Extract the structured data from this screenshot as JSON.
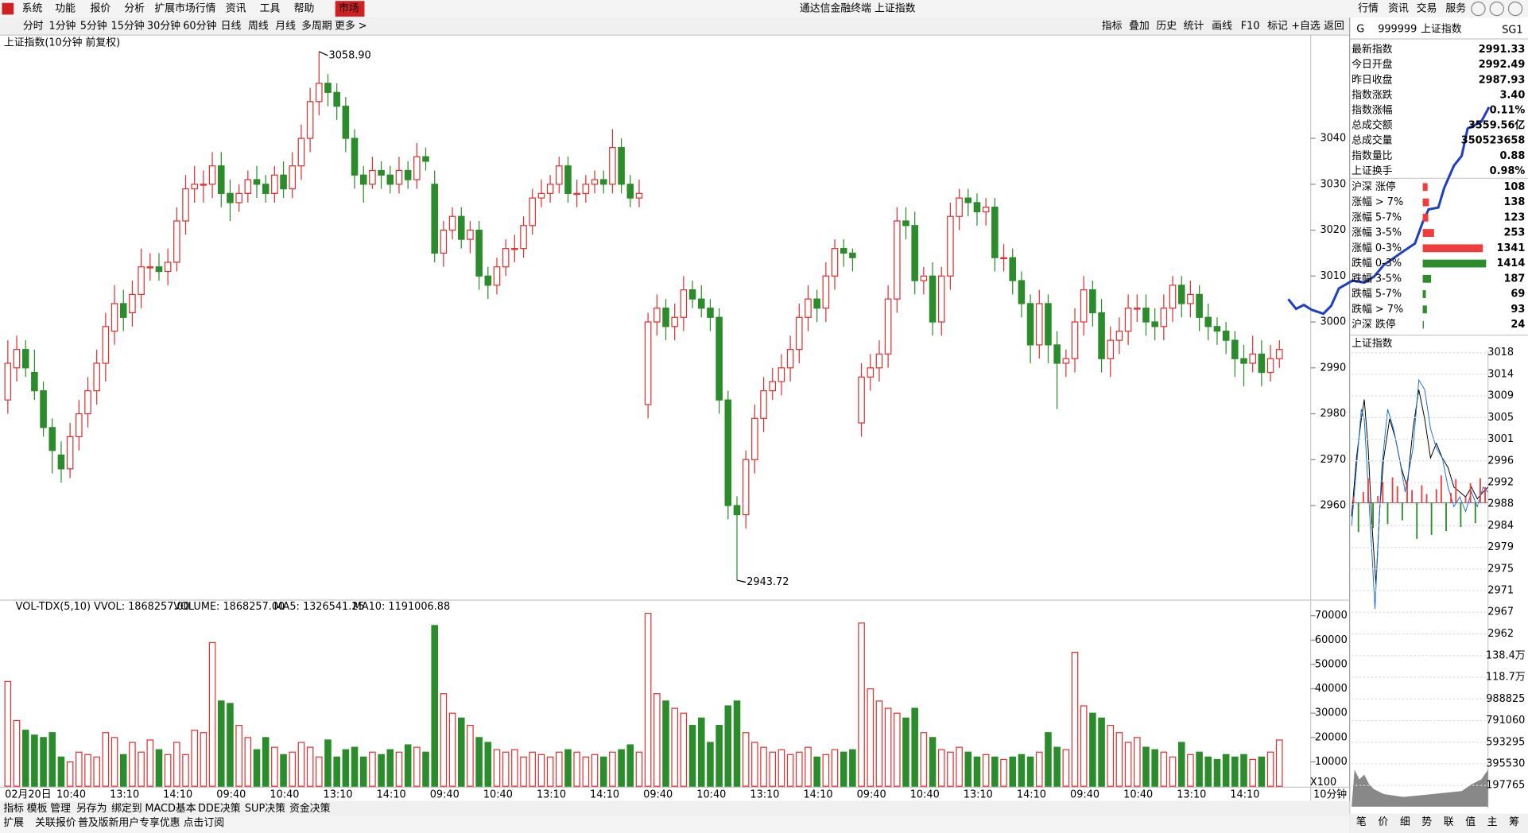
{
  "menu": [
    "系统",
    "功能",
    "报价",
    "分析",
    "扩展市场行情",
    "资讯",
    "工具",
    "帮助",
    "市场"
  ],
  "window_title": "通达信金融终端 上证指数",
  "top_buttons": [
    "行情",
    "资讯",
    "交易",
    "服务"
  ],
  "periods": [
    "分时",
    "1分钟",
    "5分钟",
    "15分钟",
    "30分钟",
    "60分钟",
    "日线",
    "周线",
    "月线",
    "多周期",
    "更多 >"
  ],
  "tools": [
    "指标",
    "叠加",
    "历史",
    "统计",
    "画线",
    "F10",
    "标记",
    "+自选",
    "返回"
  ],
  "quote_header": {
    "mark": "G",
    "code": "999999",
    "name": "上证指数",
    "tag": "SG1"
  },
  "quote": [
    {
      "label": "最新指数",
      "value": "2991.33",
      "color": "#e02020"
    },
    {
      "label": "今日开盘",
      "value": "2992.49",
      "color": "#e02020"
    },
    {
      "label": "昨日收盘",
      "value": "2987.93",
      "color": "#000000"
    },
    {
      "label": "指数涨跌",
      "value": "3.40",
      "color": "#e02020"
    },
    {
      "label": "指数涨幅",
      "value": "0.11%",
      "color": "#e02020"
    },
    {
      "label": "总成交额",
      "value": "3559.56亿",
      "color": "#000000"
    },
    {
      "label": "总成交量",
      "value": "350523658",
      "color": "#000000"
    },
    {
      "label": "指数量比",
      "value": "0.88",
      "color": "#108010"
    },
    {
      "label": "上证换手",
      "value": "0.98%",
      "color": "#000000"
    }
  ],
  "breadth": [
    {
      "label": "沪深 涨停",
      "value": 108,
      "color": "#f03c3c"
    },
    {
      "label": "涨幅 > 7%",
      "value": 138,
      "color": "#f03c3c"
    },
    {
      "label": "涨幅 5-7%",
      "value": 123,
      "color": "#f03c3c"
    },
    {
      "label": "涨幅 3-5%",
      "value": 253,
      "color": "#f03c3c"
    },
    {
      "label": "涨幅 0-3%",
      "value": 1341,
      "color": "#f03c3c"
    },
    {
      "label": "跌幅 0-3%",
      "value": 1414,
      "color": "#2a8c2a"
    },
    {
      "label": "跌幅 3-5%",
      "value": 187,
      "color": "#2a8c2a"
    },
    {
      "label": "跌幅 5-7%",
      "value": 69,
      "color": "#2a8c2a"
    },
    {
      "label": "跌幅 > 7%",
      "value": 93,
      "color": "#2a8c2a"
    },
    {
      "label": "沪深 跌停",
      "value": 24,
      "color": "#2a8c2a"
    }
  ],
  "chart_data": [
    {
      "type": "candlestick",
      "title": "上证指数(10分钟 前复权)",
      "up_color": "#e03030",
      "down_color": "#2a8c2a",
      "open": [
        2983,
        2990,
        2994,
        2989,
        2985,
        2977,
        2971,
        2968,
        2975,
        2980,
        2985,
        2991,
        2998,
        3004,
        3002,
        3006,
        3012,
        3012,
        3011,
        3013,
        3022,
        3029,
        3030,
        3030,
        3034,
        3028,
        3026,
        3028,
        3031,
        3030,
        3028,
        3032,
        3029,
        3034,
        3040,
        3048,
        3052,
        3050,
        3047,
        3040,
        3032,
        3030,
        3033,
        3032,
        3030,
        3033,
        3031,
        3036,
        3030,
        3015,
        3020,
        3023,
        3018,
        3020,
        3010,
        3008,
        3012,
        3016,
        3016,
        3021,
        3027,
        3028,
        3030,
        3034,
        3028,
        3028,
        3030,
        3031,
        3030,
        3038,
        3030,
        3027,
        2982,
        3000,
        3003,
        2999,
        3001,
        3007,
        3005,
        3003,
        3001,
        2983,
        2960,
        2958,
        2970,
        2979,
        2985,
        2987,
        2990,
        2994,
        3001,
        3005,
        3003,
        3010,
        3016,
        3015,
        2978,
        2988,
        2990,
        2993,
        3005,
        3022,
        3021,
        3009,
        3010,
        3000,
        3010,
        3023,
        3027,
        3026,
        3024,
        3025,
        3014,
        3014,
        3009,
        3004,
        2995,
        3004,
        2995,
        2991,
        2992,
        3000,
        3007,
        3002,
        2992,
        2996,
        2998,
        3003,
        3003,
        3000,
        2999,
        3003,
        3008,
        3004,
        3006,
        3001,
        2999,
        2998,
        2996,
        2992,
        2991,
        2993,
        2989,
        2992
      ],
      "high": [
        2996,
        2997,
        2996,
        2994,
        2987,
        2979,
        2974,
        2978,
        2983,
        2988,
        2994,
        3002,
        3008,
        3007,
        3009,
        3016,
        3015,
        3015,
        3016,
        3025,
        3032,
        3034,
        3033,
        3037,
        3037,
        3031,
        3030,
        3033,
        3034,
        3032,
        3034,
        3035,
        3037,
        3043,
        3051,
        3058.9,
        3054,
        3052,
        3049,
        3042,
        3034,
        3036,
        3035,
        3034,
        3036,
        3035,
        3039,
        3038,
        3033,
        3022,
        3025,
        3025,
        3022,
        3022,
        3012,
        3014,
        3018,
        3019,
        3023,
        3029,
        3031,
        3032,
        3036,
        3036,
        3031,
        3032,
        3033,
        3033,
        3042,
        3040,
        3032,
        3031,
        3002,
        3006,
        3005,
        3004,
        3010,
        3009,
        3008,
        3005,
        3003,
        2985,
        2962,
        2972,
        2982,
        2988,
        2990,
        2993,
        2997,
        3004,
        3008,
        3007,
        3013,
        3018,
        3018,
        3016,
        2991,
        2993,
        2996,
        3008,
        3025,
        3025,
        3024,
        3012,
        3013,
        3012,
        3026,
        3029,
        3029,
        3028,
        3027,
        3027,
        3017,
        3016,
        3011,
        3006,
        3007,
        3006,
        2998,
        2994,
        3003,
        3010,
        3009,
        3005,
        2999,
        3001,
        3006,
        3006,
        3006,
        3003,
        3006,
        3010,
        3010,
        3009,
        3008,
        3004,
        3001,
        3000,
        2998,
        2995,
        2997,
        2996,
        2995,
        2996
      ],
      "low": [
        2980,
        2987,
        2988,
        2983,
        2975,
        2967,
        2965,
        2966,
        2972,
        2977,
        2982,
        2987,
        2995,
        2998,
        2999,
        3003,
        3009,
        3009,
        3008,
        3011,
        3019,
        3026,
        3026,
        3027,
        3025,
        3022,
        3024,
        3026,
        3027,
        3026,
        3026,
        3027,
        3027,
        3031,
        3037,
        3045,
        3047,
        3044,
        3037,
        3029,
        3026,
        3029,
        3029,
        3028,
        3028,
        3029,
        3029,
        3033,
        3013,
        3012,
        3018,
        3016,
        3015,
        3007,
        3005,
        3006,
        3010,
        3013,
        3014,
        3019,
        3025,
        3026,
        3028,
        3026,
        3025,
        3026,
        3028,
        3028,
        3028,
        3028,
        3025,
        3025,
        2979,
        2997,
        2996,
        2996,
        2998,
        3003,
        3001,
        2998,
        2980,
        2957,
        2943.72,
        2955,
        2967,
        2976,
        2983,
        2984,
        2987,
        2991,
        2998,
        3000,
        3000,
        3007,
        3012,
        3011,
        2975,
        2985,
        2987,
        2990,
        3002,
        3018,
        3006,
        3006,
        2997,
        2997,
        3007,
        3020,
        3023,
        3021,
        3021,
        3011,
        3011,
        3006,
        3001,
        2991,
        2992,
        2991,
        2981,
        2988,
        2989,
        2997,
        2999,
        2989,
        2988,
        2993,
        2995,
        3000,
        2997,
        2996,
        2996,
        3000,
        3001,
        3001,
        2998,
        2996,
        2995,
        2993,
        2988,
        2986,
        2989,
        2986,
        2987,
        2990
      ],
      "close": [
        2991,
        2994,
        2990,
        2985,
        2977,
        2972,
        2968,
        2975,
        2980,
        2985,
        2991,
        2999,
        3004,
        3001,
        3006,
        3012,
        3012,
        3011,
        3013,
        3022,
        3029,
        3030,
        3030,
        3034,
        3028,
        3026,
        3028,
        3031,
        3030,
        3028,
        3032,
        3029,
        3034,
        3040,
        3048,
        3052,
        3050,
        3047,
        3040,
        3032,
        3030,
        3033,
        3032,
        3030,
        3033,
        3031,
        3036,
        3035,
        3015,
        3020,
        3023,
        3018,
        3020,
        3010,
        3008,
        3012,
        3016,
        3016,
        3021,
        3027,
        3028,
        3030,
        3034,
        3028,
        3028,
        3030,
        3031,
        3030,
        3038,
        3030,
        3027,
        3028,
        3000,
        3003,
        2999,
        3001,
        3007,
        3005,
        3003,
        3001,
        2983,
        2960,
        2958,
        2970,
        2979,
        2985,
        2987,
        2990,
        2994,
        3001,
        3005,
        3003,
        3010,
        3016,
        3015,
        3014,
        2988,
        2990,
        2993,
        3005,
        3022,
        3021,
        3009,
        3010,
        3000,
        3010,
        3023,
        3027,
        3026,
        3024,
        3025,
        3014,
        3014,
        3009,
        3004,
        2995,
        3004,
        2995,
        2991,
        2992,
        3000,
        3007,
        3002,
        2992,
        2996,
        2998,
        3003,
        3003,
        3000,
        2999,
        3003,
        3008,
        3004,
        3006,
        3001,
        2999,
        2998,
        2996,
        2992,
        2991,
        2993,
        2989,
        2992,
        2994
      ],
      "max_label": "3058.90",
      "min_label": "2943.72",
      "ylim": [
        2939.6,
        3062.5
      ],
      "yticks": [
        2960,
        2970,
        2980,
        2990,
        3000,
        3010,
        3020,
        3030,
        3040
      ],
      "xtick_labels": [
        "02月20日",
        "10:40",
        "13:10",
        "14:10",
        "09:40",
        "10:40",
        "13:10",
        "14:10",
        "09:40",
        "10:40",
        "13:10",
        "14:10",
        "09:40",
        "10:40",
        "13:10",
        "14:10",
        "09:40",
        "10:40",
        "13:10",
        "14:10",
        "09:40",
        "10:40",
        "13:10",
        "14:10"
      ],
      "period_label": "10分钟"
    },
    {
      "type": "bar",
      "title": "VOL-TDX(5,10)  VVOL: 1868257.00",
      "legend": [
        {
          "text": "VOLUME: 1868257.00",
          "color": "#1a6fd0"
        },
        {
          "text": "MA5: 1326541.25",
          "color": "#1a6fd0"
        },
        {
          "text": "MA10: 1191006.88",
          "color": "#9a1a9a"
        }
      ],
      "unit_label": "X100",
      "values": [
        43000,
        27000,
        23000,
        21000,
        20000,
        22000,
        12000,
        10000,
        14000,
        13000,
        12000,
        22000,
        20000,
        13000,
        18000,
        14000,
        19000,
        15000,
        13000,
        18000,
        13000,
        23000,
        22000,
        59000,
        35000,
        34000,
        25000,
        20000,
        15000,
        20000,
        16000,
        13000,
        14000,
        18000,
        16000,
        12000,
        19000,
        12000,
        15000,
        16000,
        12000,
        14000,
        13000,
        15000,
        14000,
        17000,
        16000,
        14000,
        66000,
        38000,
        30000,
        28000,
        25000,
        20000,
        18000,
        15000,
        14000,
        15000,
        12000,
        14000,
        13000,
        12000,
        14000,
        15000,
        14000,
        12000,
        13000,
        12000,
        14000,
        15000,
        17000,
        14000,
        71000,
        38000,
        35000,
        32000,
        30000,
        25000,
        28000,
        18000,
        25000,
        33000,
        35000,
        22000,
        18000,
        16000,
        14000,
        15000,
        13000,
        14000,
        16000,
        12000,
        13000,
        15000,
        14000,
        15000,
        67000,
        40000,
        35000,
        32000,
        30000,
        28000,
        32000,
        22000,
        20000,
        15000,
        14000,
        16000,
        14000,
        12000,
        13000,
        12000,
        11000,
        12000,
        13000,
        12000,
        14000,
        22000,
        16000,
        15000,
        55000,
        33000,
        30000,
        28000,
        25000,
        22000,
        18000,
        20000,
        16000,
        15000,
        14000,
        12000,
        18000,
        13000,
        14000,
        12000,
        11000,
        13000,
        12000,
        13000,
        11000,
        12000,
        14000,
        19000
      ],
      "ylim": [
        0,
        76000
      ],
      "yticks": [
        10000,
        20000,
        30000,
        40000,
        50000,
        60000,
        70000
      ]
    }
  ],
  "minute_chart": {
    "title": "上证指数",
    "yticks": [
      3018,
      3014,
      3009,
      3005,
      3001,
      2996,
      2992,
      2988,
      2984,
      2979,
      2975,
      2971,
      2967,
      2962
    ],
    "base": 2988,
    "vticks": [
      {
        "value": 1384000,
        "label": "138.4万"
      },
      {
        "value": 1187000,
        "label": "118.7万"
      },
      988825,
      791060,
      593295,
      395530,
      197765
    ]
  },
  "tabs": [
    "指标",
    "模板",
    "管理",
    "另存为",
    "绑定到",
    "MACD基本",
    "DDE决策",
    "SUP决策",
    "资金决策"
  ],
  "status": [
    "扩展",
    "关联报价",
    "普及版新用户专享优惠 点击订阅"
  ],
  "side_tabs": [
    "笔",
    "价",
    "细",
    "势",
    "联",
    "值",
    "主",
    "筹"
  ]
}
